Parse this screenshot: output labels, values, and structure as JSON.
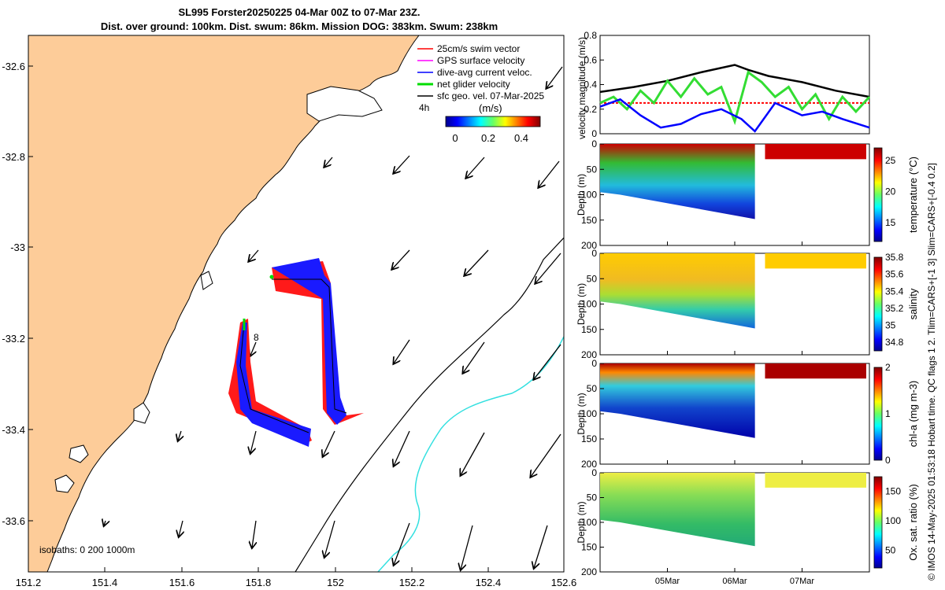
{
  "title": {
    "line1": "SL995 Forster20250225 04-Mar 00Z to 07-Mar 23Z.",
    "line2": "Dist. over ground: 100km. Dist. swum: 86km. Mission DOG: 383km. Swum: 238km"
  },
  "credit": "© IMOS 14-May-2025 01:53:18 Hobart time. QC flags 1  2. Tlim=CARS+[-1 3] Slim=CARS+[-0.4 0.2]",
  "map": {
    "lon_ticks": [
      "151.2",
      "151.4",
      "151.6",
      "151.8",
      "152",
      "152.2",
      "152.4",
      "152.6"
    ],
    "lat_ticks": [
      "-32.6",
      "-32.8",
      "-33",
      "-33.2",
      "-33.4",
      "-33.6"
    ],
    "legend": [
      {
        "label": "25cm/s swim vector",
        "color": "#ff0000"
      },
      {
        "label": "GPS surface velocity",
        "color": "#ff00ff"
      },
      {
        "label": "dive-avg current veloc.",
        "color": "#0000ff"
      },
      {
        "label": "net glider velocity",
        "color": "#00dd00"
      },
      {
        "label": "sfc geo. vel. 07-Mar-2025",
        "color": "#000000"
      }
    ],
    "legend_extra": "4h",
    "colorbar_label": "(m/s)",
    "colorbar_ticks": [
      "0",
      "0.2",
      "0.4"
    ],
    "isobaths_text": "isobaths: 0   200  1000m",
    "day_label": "8"
  },
  "chart_data": [
    {
      "type": "line",
      "title": "",
      "ylabel": "velocity magnitude (m/s)",
      "ylim": [
        0,
        0.8
      ],
      "yticks": [
        "0",
        "0.2",
        "0.4",
        "0.6",
        "0.8"
      ],
      "x_days": [
        0,
        0.5,
        1,
        1.5,
        2,
        2.5,
        3,
        3.5,
        4
      ],
      "series": [
        {
          "name": "sfc geo. vel.",
          "color": "#000000",
          "x": [
            0,
            0.5,
            1,
            1.5,
            2,
            2.2,
            2.5,
            3,
            3.5,
            4
          ],
          "values": [
            0.34,
            0.38,
            0.43,
            0.5,
            0.56,
            0.52,
            0.47,
            0.42,
            0.35,
            0.3
          ]
        },
        {
          "name": "swim",
          "color": "#ff0000",
          "x": [
            0,
            0.5,
            1,
            1.5,
            2,
            2.5,
            3,
            3.5,
            4
          ],
          "values": [
            0.25,
            0.25,
            0.25,
            0.25,
            0.25,
            0.25,
            0.25,
            0.25,
            0.25
          ]
        },
        {
          "name": "net glider velocity",
          "color": "#33dd33",
          "x": [
            0,
            0.2,
            0.4,
            0.6,
            0.8,
            1,
            1.2,
            1.4,
            1.6,
            1.8,
            2,
            2.2,
            2.4,
            2.6,
            2.8,
            3,
            3.2,
            3.4,
            3.6,
            3.8,
            4
          ],
          "values": [
            0.25,
            0.3,
            0.2,
            0.35,
            0.25,
            0.43,
            0.3,
            0.45,
            0.32,
            0.38,
            0.1,
            0.5,
            0.42,
            0.3,
            0.38,
            0.2,
            0.32,
            0.12,
            0.3,
            0.18,
            0.3
          ]
        },
        {
          "name": "dive-avg current",
          "color": "#0000ff",
          "x": [
            0,
            0.3,
            0.6,
            0.9,
            1.2,
            1.5,
            1.8,
            2.1,
            2.3,
            2.6,
            3,
            3.3,
            3.6,
            4
          ],
          "values": [
            0.22,
            0.28,
            0.15,
            0.05,
            0.08,
            0.16,
            0.2,
            0.12,
            0.02,
            0.25,
            0.15,
            0.18,
            0.12,
            0.05
          ]
        }
      ]
    },
    {
      "type": "heatmap",
      "ylabel": "Depth (m)",
      "colorbar_label": "temperature (°C)",
      "yticks": [
        "0",
        "50",
        "100",
        "150",
        "200"
      ],
      "cticks": [
        "15",
        "20",
        "25"
      ],
      "clim": [
        12,
        27
      ]
    },
    {
      "type": "heatmap",
      "ylabel": "Depth (m)",
      "colorbar_label": "salinity",
      "yticks": [
        "0",
        "50",
        "100",
        "150",
        "200"
      ],
      "cticks": [
        "34.8",
        "35",
        "35.2",
        "35.4",
        "35.6",
        "35.8"
      ],
      "clim": [
        34.7,
        35.8
      ]
    },
    {
      "type": "heatmap",
      "ylabel": "Depth (m)",
      "colorbar_label": "chl-a (mg m-3)",
      "yticks": [
        "0",
        "50",
        "100",
        "150",
        "200"
      ],
      "cticks": [
        "0",
        "1",
        "2"
      ],
      "clim": [
        0,
        2
      ]
    },
    {
      "type": "heatmap",
      "ylabel": "Depth (m)",
      "colorbar_label": "Ox. sat. ratio (%)",
      "yticks": [
        "0",
        "50",
        "100",
        "150",
        "200"
      ],
      "cticks": [
        "50",
        "100",
        "150"
      ],
      "clim": [
        20,
        175
      ],
      "xticks": [
        "05Mar",
        "06Mar",
        "07Mar"
      ]
    }
  ],
  "colors": {
    "land": "#fdcc99",
    "cyan_isobath": "#33e0e0"
  }
}
